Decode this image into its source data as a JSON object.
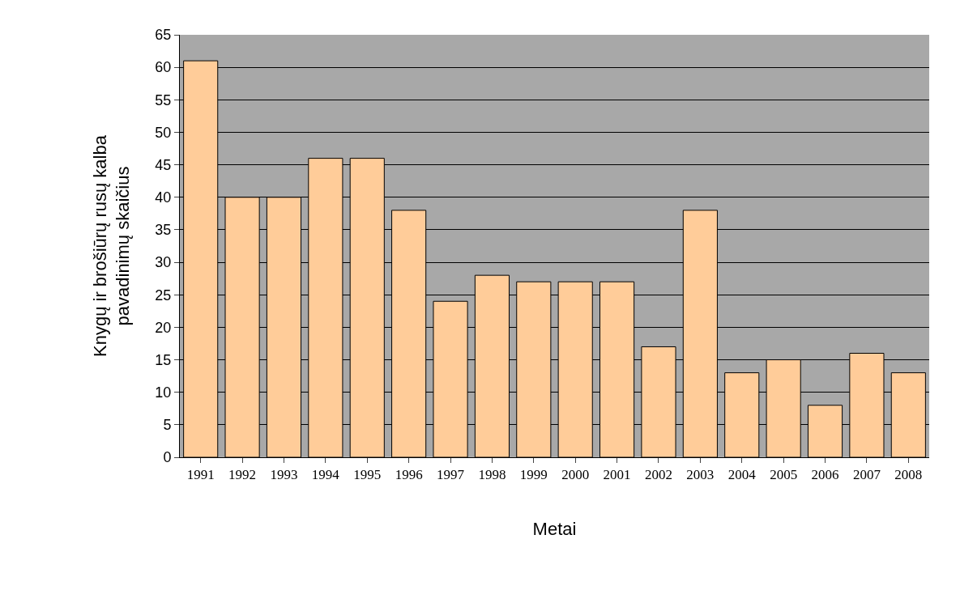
{
  "chart_data": {
    "type": "bar",
    "xlabel": "Metai",
    "ylabel": "Knygų ir brošiūrų rusų kalba\npavadinimų skaičius",
    "categories": [
      "1991",
      "1992",
      "1993",
      "1994",
      "1995",
      "1996",
      "1997",
      "1998",
      "1999",
      "2000",
      "2001",
      "2002",
      "2003",
      "2004",
      "2005",
      "2006",
      "2007",
      "2008"
    ],
    "values": [
      61,
      40,
      40,
      46,
      46,
      38,
      24,
      28,
      27,
      27,
      27,
      17,
      38,
      13,
      15,
      8,
      16,
      13
    ],
    "color": "#ffcc99",
    "ylim": [
      0,
      65
    ],
    "yticks": [
      0,
      5,
      10,
      15,
      20,
      25,
      30,
      35,
      40,
      45,
      50,
      55,
      60,
      65
    ],
    "grid": "y"
  }
}
